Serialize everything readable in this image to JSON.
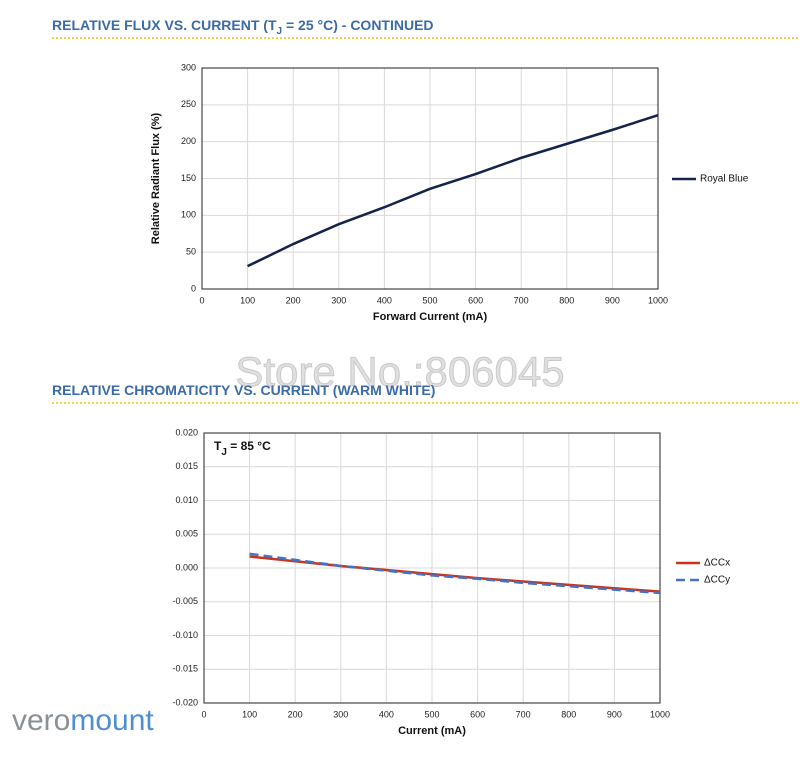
{
  "headings": {
    "flux": [
      "RELATIVE FLUX VS. CURRENT (T",
      "J",
      " = 25 °C) - CONTINUED"
    ],
    "chromaticity": "RELATIVE CHROMATICITY VS. CURRENT (WARM WHITE)"
  },
  "watermark": "Store No.:806045",
  "logo": [
    "vero",
    "mount"
  ],
  "chart_data": [
    {
      "type": "line",
      "xlabel": "Forward Current (mA)",
      "ylabel": "Relative Radiant Flux (%)",
      "x": [
        100,
        200,
        300,
        400,
        500,
        600,
        700,
        800,
        900,
        1000
      ],
      "series": [
        {
          "name": "Royal Blue",
          "color": "#14234a",
          "line_style": "solid",
          "values": [
            31,
            61,
            88,
            111,
            136,
            156,
            178,
            197,
            216,
            236
          ]
        }
      ],
      "xlim": [
        0,
        1000
      ],
      "xticks": [
        0,
        100,
        200,
        300,
        400,
        500,
        600,
        700,
        800,
        900,
        1000
      ],
      "ylim": [
        0,
        300
      ],
      "yticks": [
        0,
        50,
        100,
        150,
        200,
        250,
        300
      ],
      "grid": true,
      "legend": "right"
    },
    {
      "type": "line",
      "xlabel": "Current (mA)",
      "annotation": [
        "T",
        "J",
        " = 85 °C"
      ],
      "x": [
        100,
        200,
        300,
        400,
        500,
        600,
        700,
        800,
        900,
        1000
      ],
      "series": [
        {
          "name": "ΔCCx",
          "color": "#c8351f",
          "line_style": "solid",
          "values": [
            0.0017,
            0.001,
            0.0003,
            -0.0003,
            -0.0009,
            -0.0015,
            -0.002,
            -0.0025,
            -0.003,
            -0.0035
          ]
        },
        {
          "name": "ΔCCy",
          "color": "#4472c4",
          "line_style": "dashed",
          "values": [
            0.0021,
            0.0012,
            0.0003,
            -0.0004,
            -0.0011,
            -0.0016,
            -0.0022,
            -0.0027,
            -0.0032,
            -0.0037
          ]
        }
      ],
      "xlim": [
        0,
        1000
      ],
      "xticks": [
        0,
        100,
        200,
        300,
        400,
        500,
        600,
        700,
        800,
        900,
        1000
      ],
      "ylim": [
        -0.02,
        0.02
      ],
      "yticks": [
        {
          "value": -0.02,
          "label": "-0.020"
        },
        {
          "value": -0.015,
          "label": "-0.015"
        },
        {
          "value": -0.01,
          "label": "-0.010"
        },
        {
          "value": -0.005,
          "label": "-0.005"
        },
        {
          "value": 0,
          "label": "0.000"
        },
        {
          "value": 0.005,
          "label": "0.005"
        },
        {
          "value": 0.01,
          "label": "0.010"
        },
        {
          "value": 0.015,
          "label": "0.015"
        },
        {
          "value": 0.02,
          "label": "0.020"
        }
      ],
      "grid": true,
      "legend": "right"
    }
  ]
}
